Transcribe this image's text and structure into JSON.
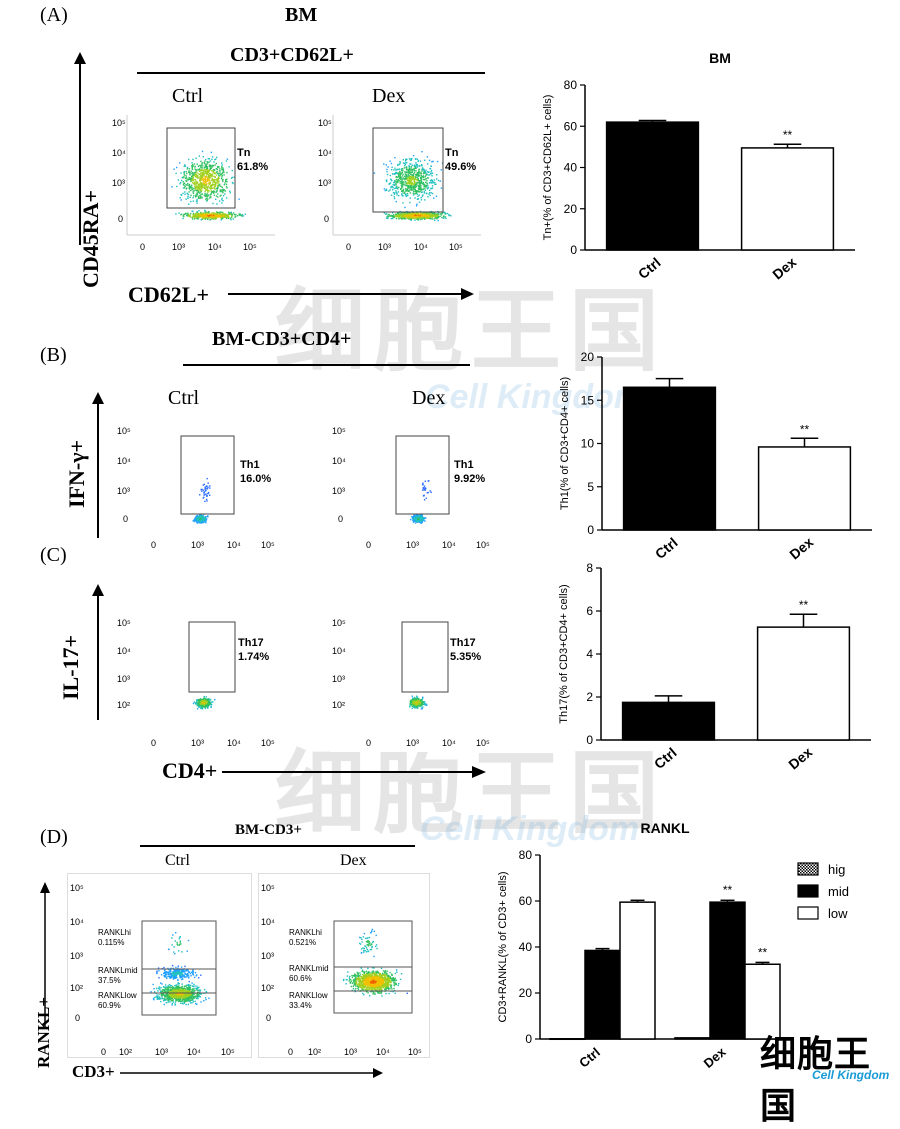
{
  "panel_a": {
    "label": "(A)",
    "title": "BM",
    "population": "CD3+CD62L+",
    "ctrl_label": "Ctrl",
    "dex_label": "Dex",
    "y_marker": "CD45RA+",
    "x_marker": "CD62L+",
    "ctrl_gate": {
      "name": "Tn",
      "pct": "61.8%"
    },
    "dex_gate": {
      "name": "Tn",
      "pct": "49.6%"
    }
  },
  "panel_b": {
    "label": "(B)",
    "population": "BM-CD3+CD4+",
    "ctrl_label": "Ctrl",
    "dex_label": "Dex",
    "y_marker": "IFN-γ+",
    "ctrl_gate": {
      "name": "Th1",
      "pct": "16.0%"
    },
    "dex_gate": {
      "name": "Th1",
      "pct": "9.92%"
    }
  },
  "panel_c": {
    "label": "(C)",
    "y_marker": "IL-17+",
    "x_marker": "CD4+",
    "ctrl_gate": {
      "name": "Th17",
      "pct": "1.74%"
    },
    "dex_gate": {
      "name": "Th17",
      "pct": "5.35%"
    }
  },
  "panel_d": {
    "label": "(D)",
    "population": "BM-CD3+",
    "ctrl_label": "Ctrl",
    "dex_label": "Dex",
    "y_marker": "RANKL+",
    "x_marker": "CD3+",
    "ctrl_gates": [
      {
        "name": "RANKLhi",
        "pct": "0.115%"
      },
      {
        "name": "RANKLmid",
        "pct": "37.5%"
      },
      {
        "name": "RANKLlow",
        "pct": "60.9%"
      }
    ],
    "dex_gates": [
      {
        "name": "RANKLhi",
        "pct": "0.521%"
      },
      {
        "name": "RANKLmid",
        "pct": "60.6%"
      },
      {
        "name": "RANKLlow",
        "pct": "33.4%"
      }
    ]
  },
  "facs_ticks": {
    "y": [
      "10⁵",
      "10⁴",
      "10³",
      "0"
    ],
    "x": [
      "0",
      "10³",
      "10⁴",
      "10⁵"
    ],
    "y_d": [
      "10⁵",
      "10⁴",
      "10³",
      "10²",
      "0"
    ],
    "x_d": [
      "0",
      "10²",
      "10³",
      "10⁴",
      "10⁵"
    ]
  },
  "watermark": {
    "text": "细胞王国",
    "sub": "Cell Kingdom"
  },
  "logo": {
    "text": "细胞王国",
    "sub": "Cell Kingdom"
  },
  "colors": {
    "bar_fill": "#000000",
    "bar_open": "#ffffff"
  },
  "chart_data": [
    {
      "type": "bar",
      "title": "BM",
      "categories": [
        "Ctrl",
        "Dex"
      ],
      "values": [
        62,
        49.5
      ],
      "errors": [
        0.8,
        1.8
      ],
      "fills": [
        "black",
        "white"
      ],
      "significance": [
        "",
        "**"
      ],
      "ylabel": "Tn+(% of CD3+CD62L+ cells)",
      "ylim": [
        0,
        80
      ],
      "yticks": [
        0,
        20,
        40,
        60,
        80
      ]
    },
    {
      "type": "bar",
      "title": "",
      "categories": [
        "Ctrl",
        "Dex"
      ],
      "values": [
        16.5,
        9.6
      ],
      "errors": [
        1.0,
        1.0
      ],
      "fills": [
        "black",
        "white"
      ],
      "significance": [
        "",
        "**"
      ],
      "ylabel": "Th1(% of CD3+CD4+ cells)",
      "ylim": [
        0,
        20
      ],
      "yticks": [
        0,
        5,
        10,
        15,
        20
      ]
    },
    {
      "type": "bar",
      "title": "",
      "categories": [
        "Ctrl",
        "Dex"
      ],
      "values": [
        1.75,
        5.25
      ],
      "errors": [
        0.3,
        0.6
      ],
      "fills": [
        "black",
        "white"
      ],
      "significance": [
        "",
        "**"
      ],
      "ylabel": "Th17(% of CD3+CD4+ cells)",
      "ylim": [
        0,
        8
      ],
      "yticks": [
        0,
        2,
        4,
        6,
        8
      ]
    },
    {
      "type": "bar",
      "title": "RANKL",
      "categories": [
        "Ctrl",
        "Dex"
      ],
      "series": [
        {
          "name": "hig",
          "values": [
            0.1,
            0.5
          ],
          "errors": [
            0,
            0
          ],
          "fill": "hatch",
          "significance": [
            "",
            ""
          ]
        },
        {
          "name": "mid",
          "values": [
            38.5,
            59.5
          ],
          "errors": [
            0.8,
            0.8
          ],
          "fill": "black",
          "significance": [
            "",
            "**"
          ]
        },
        {
          "name": "low",
          "values": [
            59.5,
            32.5
          ],
          "errors": [
            0.8,
            0.8
          ],
          "fill": "white",
          "significance": [
            "",
            "**"
          ]
        }
      ],
      "ylabel": "CD3+RANKL(% of CD3+ cells)",
      "ylim": [
        0,
        80
      ],
      "yticks": [
        0,
        20,
        40,
        60,
        80
      ],
      "legend": "top-right"
    }
  ]
}
